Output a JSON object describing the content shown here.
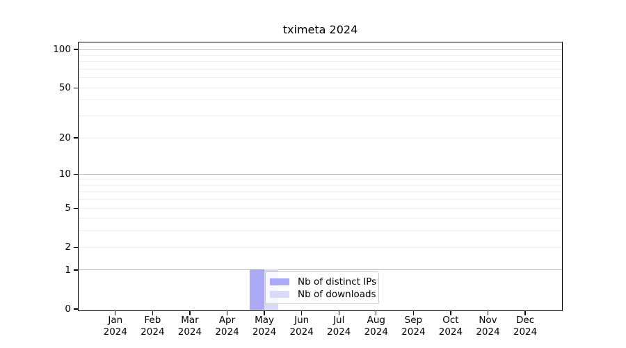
{
  "title": "tximeta 2024",
  "chart_data": {
    "type": "bar",
    "title": "tximeta 2024",
    "x_months": [
      "Jan",
      "Feb",
      "Mar",
      "Apr",
      "May",
      "Jun",
      "Jul",
      "Aug",
      "Sep",
      "Oct",
      "Nov",
      "Dec"
    ],
    "x_year": "2024",
    "series": [
      {
        "name": "Nb of distinct IPs",
        "color": "#a9a9f5",
        "values": [
          0,
          0,
          0,
          0,
          1,
          0,
          0,
          0,
          0,
          0,
          0,
          0
        ]
      },
      {
        "name": "Nb of downloads",
        "color": "#d9d9f8",
        "values": [
          0,
          0,
          0,
          0,
          1,
          0,
          0,
          0,
          0,
          0,
          0,
          0
        ]
      }
    ],
    "y_scale": "log1p",
    "ylim": [
      0,
      115
    ],
    "y_tick_labels": [
      "0",
      "1",
      "2",
      "5",
      "10",
      "20",
      "50",
      "100"
    ],
    "y_tick_values": [
      0,
      1,
      2,
      5,
      10,
      20,
      50,
      100
    ],
    "y_major_gridlines": [
      1,
      10,
      100
    ],
    "y_minor_gridlines": [
      2,
      3,
      4,
      5,
      6,
      7,
      8,
      9,
      20,
      30,
      40,
      50,
      60,
      70,
      80,
      90
    ],
    "grid": true,
    "legend_position": "inside, lower-center near May bar",
    "colors": {
      "major_grid": "#c3c3c3",
      "minor_grid": "#ededed",
      "axis": "#000000",
      "legend_border": "#cccccc",
      "legend_background": "rgba(255,255,255,0.8)"
    }
  }
}
